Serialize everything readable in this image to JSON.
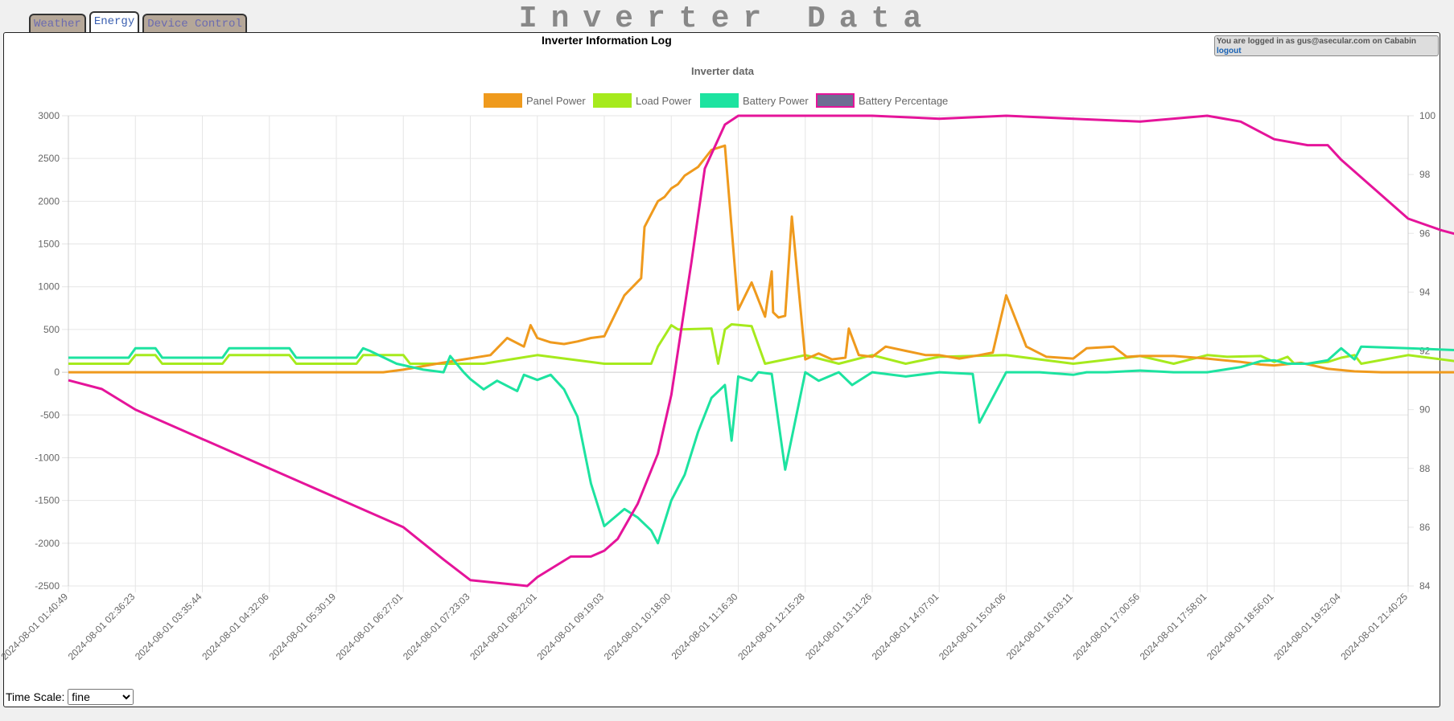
{
  "tabs": [
    {
      "label": "Weather",
      "active": false
    },
    {
      "label": "Energy",
      "active": true
    },
    {
      "label": "Device Control",
      "active": false
    }
  ],
  "page_title": "Inverter Data",
  "log_title": "Inverter Information Log",
  "login": {
    "text": "You are logged in as gus@asecular.com on Cababin",
    "logout": "logout"
  },
  "time_scale": {
    "label": "Time Scale:",
    "selected": "fine"
  },
  "colors": {
    "panel": "#ef9a1d",
    "load": "#a6ea1d",
    "battery": "#1de3a0",
    "percent": "#e5149a",
    "percent_fill": "#6d6d93"
  },
  "chart_data": {
    "type": "line",
    "title": "Inverter data",
    "legend_position": "top",
    "grid": true,
    "ylim": [
      -2500,
      3000
    ],
    "y_ticks": [
      3000,
      2500,
      2000,
      1500,
      1000,
      500,
      0,
      -500,
      -1000,
      -1500,
      -2000,
      -2500
    ],
    "y2lim": [
      84,
      100
    ],
    "y2_ticks": [
      100,
      98,
      96,
      94,
      92,
      90,
      88,
      86,
      84
    ],
    "x_tick_labels": [
      "2024-08-01 01:40:49",
      "2024-08-01 02:36:23",
      "2024-08-01 03:35:44",
      "2024-08-01 04:32:06",
      "2024-08-01 05:30:19",
      "2024-08-01 06:27:01",
      "2024-08-01 07:23:03",
      "2024-08-01 08:22:01",
      "2024-08-01 09:19:03",
      "2024-08-01 10:18:00",
      "2024-08-01 11:16:30",
      "2024-08-01 12:15:28",
      "2024-08-01 13:11:26",
      "2024-08-01 14:07:01",
      "2024-08-01 15:04:06",
      "2024-08-01 16:03:11",
      "2024-08-01 17:00:56",
      "2024-08-01 17:58:01",
      "2024-08-01 18:56:01",
      "2024-08-01 19:52:04",
      "2024-08-01 21:40:25"
    ],
    "series": [
      {
        "name": "Panel Power",
        "axis": "left",
        "x": [
          0,
          4.7,
          5.0,
          5.5,
          5.9,
          6.3,
          6.55,
          6.8,
          6.9,
          7.0,
          7.2,
          7.4,
          7.6,
          7.8,
          8.0,
          8.3,
          8.55,
          8.6,
          8.7,
          8.8,
          8.9,
          9.0,
          9.1,
          9.2,
          9.4,
          9.6,
          9.8,
          10.0,
          10.2,
          10.4,
          10.5,
          10.52,
          10.6,
          10.7,
          10.8,
          11.0,
          11.2,
          11.4,
          11.6,
          11.65,
          11.8,
          12.0,
          12.2,
          12.5,
          12.8,
          13.0,
          13.3,
          13.6,
          13.8,
          14.0,
          14.3,
          14.6,
          14.8,
          15.0,
          15.2,
          15.6,
          15.8,
          16.0,
          16.5,
          17.0,
          17.5,
          17.8,
          18.0,
          18.4,
          18.8,
          19.2,
          19.6,
          20.0,
          21.0
        ],
        "y": [
          0,
          0,
          30,
          100,
          150,
          200,
          400,
          300,
          550,
          400,
          350,
          330,
          360,
          400,
          420,
          900,
          1100,
          1700,
          1850,
          2000,
          2050,
          2150,
          2200,
          2300,
          2400,
          2600,
          2650,
          730,
          1050,
          650,
          1180,
          700,
          640,
          660,
          1820,
          150,
          220,
          150,
          170,
          510,
          200,
          180,
          300,
          250,
          200,
          200,
          160,
          200,
          230,
          900,
          300,
          180,
          170,
          160,
          280,
          300,
          180,
          190,
          190,
          160,
          120,
          90,
          80,
          110,
          40,
          10,
          0,
          0,
          0
        ]
      },
      {
        "name": "Load Power",
        "axis": "left",
        "x": [
          0,
          0.9,
          1.0,
          1.3,
          1.4,
          2.3,
          2.4,
          3.3,
          3.4,
          4.3,
          4.4,
          5.0,
          5.1,
          5.4,
          6.2,
          7.0,
          8.0,
          8.7,
          8.8,
          9.0,
          9.1,
          9.6,
          9.7,
          9.8,
          9.9,
          10.2,
          10.4,
          11.0,
          11.5,
          12.0,
          12.5,
          13.0,
          14.0,
          15.0,
          16.0,
          16.5,
          17.0,
          17.3,
          17.8,
          18.0,
          18.2,
          18.3,
          18.5,
          18.8,
          19.0,
          19.2,
          19.3,
          20.0,
          21.0
        ],
        "y": [
          100,
          100,
          200,
          200,
          100,
          100,
          200,
          200,
          100,
          100,
          200,
          200,
          100,
          100,
          100,
          200,
          100,
          100,
          300,
          550,
          500,
          510,
          100,
          500,
          560,
          540,
          100,
          200,
          100,
          200,
          100,
          180,
          200,
          100,
          190,
          100,
          200,
          180,
          190,
          120,
          180,
          100,
          100,
          120,
          170,
          200,
          100,
          200,
          100
        ]
      },
      {
        "name": "Battery Power",
        "axis": "left",
        "x": [
          0,
          0.9,
          1.0,
          1.3,
          1.4,
          2.3,
          2.4,
          3.3,
          3.4,
          4.3,
          4.4,
          4.5,
          4.9,
          5.3,
          5.6,
          5.7,
          5.9,
          6.0,
          6.2,
          6.4,
          6.7,
          6.8,
          7.0,
          7.2,
          7.4,
          7.6,
          7.8,
          8.0,
          8.3,
          8.5,
          8.7,
          8.8,
          9.0,
          9.2,
          9.4,
          9.6,
          9.8,
          9.9,
          10.0,
          10.2,
          10.3,
          10.5,
          10.7,
          11.0,
          11.2,
          11.5,
          11.7,
          12.0,
          12.5,
          13.0,
          13.5,
          13.6,
          14.0,
          14.5,
          15.0,
          15.2,
          15.5,
          16.0,
          16.5,
          17.0,
          17.5,
          17.8,
          18.0,
          18.2,
          18.5,
          18.8,
          19.0,
          19.2,
          19.3,
          20.0,
          21.0
        ],
        "y": [
          170,
          170,
          280,
          280,
          170,
          170,
          280,
          280,
          170,
          170,
          280,
          250,
          100,
          30,
          0,
          190,
          0,
          -80,
          -200,
          -100,
          -220,
          -30,
          -90,
          -30,
          -200,
          -520,
          -1300,
          -1800,
          -1600,
          -1700,
          -1850,
          -2000,
          -1500,
          -1200,
          -700,
          -300,
          -150,
          -800,
          -50,
          -100,
          0,
          -20,
          -1140,
          0,
          -100,
          0,
          -150,
          0,
          -50,
          0,
          -20,
          -590,
          0,
          0,
          -30,
          0,
          0,
          20,
          0,
          0,
          60,
          130,
          140,
          100,
          100,
          140,
          280,
          150,
          300,
          280,
          250
        ]
      },
      {
        "name": "Battery Percentage",
        "axis": "right",
        "x": [
          0,
          0.5,
          1.0,
          2.0,
          3.0,
          4.0,
          5.0,
          5.6,
          6.0,
          6.85,
          7.0,
          7.5,
          7.8,
          8.0,
          8.2,
          8.5,
          8.8,
          9.0,
          9.3,
          9.5,
          9.8,
          10.0,
          10.2,
          12.0,
          13.0,
          14.0,
          15.0,
          16.0,
          17.0,
          17.5,
          18.0,
          18.5,
          18.8,
          19.0,
          19.5,
          20.0,
          20.5,
          21.0
        ],
        "y": [
          91,
          90.7,
          90,
          89,
          88,
          87,
          86,
          84.9,
          84.2,
          84,
          84.3,
          85,
          85,
          85.2,
          85.6,
          86.8,
          88.5,
          90.5,
          95,
          98.2,
          99.7,
          100,
          100,
          100,
          99.9,
          100,
          99.9,
          99.8,
          100,
          99.8,
          99.2,
          99,
          99,
          98.5,
          97.5,
          96.5,
          96.1,
          95.8
        ]
      }
    ]
  }
}
